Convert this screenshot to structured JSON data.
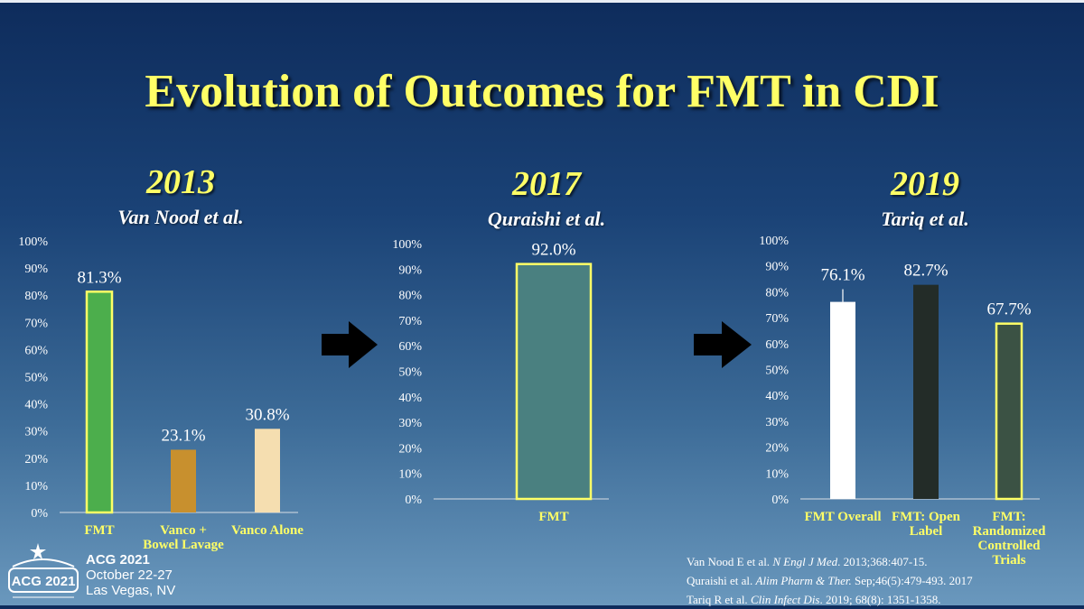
{
  "slide": {
    "title": "Evolution of Outcomes for FMT in CDI"
  },
  "panels": [
    {
      "year": "2013",
      "subtitle": "Van Nood et al."
    },
    {
      "year": "2017",
      "subtitle": "Quraishi et al."
    },
    {
      "year": "2019",
      "subtitle": "Tariq et al."
    }
  ],
  "colors": {
    "title": "#ffff66",
    "bar_outline": "#ffff66",
    "arrow": "#000000"
  },
  "icons": [
    "right-arrow-icon",
    "right-arrow-icon"
  ],
  "chart_data": [
    {
      "type": "bar",
      "ylim": [
        0,
        100
      ],
      "yticks": [
        "0%",
        "10%",
        "20%",
        "30%",
        "40%",
        "50%",
        "60%",
        "70%",
        "80%",
        "90%",
        "100%"
      ],
      "categories": [
        [
          "FMT"
        ],
        [
          "Vanco +",
          "Bowel Lavage"
        ],
        [
          "Vanco Alone"
        ]
      ],
      "values": [
        81.3,
        23.1,
        30.8
      ],
      "data_labels": [
        "81.3%",
        "23.1%",
        "30.8%"
      ],
      "bar_colors": [
        "#4cae4c",
        "#c8902e",
        "#f5deb0"
      ],
      "bar_outlined": [
        true,
        false,
        false
      ]
    },
    {
      "type": "bar",
      "ylim": [
        0,
        100
      ],
      "yticks": [
        "0%",
        "10%",
        "20%",
        "30%",
        "40%",
        "50%",
        "60%",
        "70%",
        "80%",
        "90%",
        "100%"
      ],
      "categories": [
        [
          "FMT"
        ]
      ],
      "values": [
        92.0
      ],
      "data_labels": [
        "92.0%"
      ],
      "bar_colors": [
        "#4a8080"
      ],
      "bar_outlined": [
        true
      ]
    },
    {
      "type": "bar",
      "ylim": [
        0,
        100
      ],
      "yticks": [
        "0%",
        "10%",
        "20%",
        "30%",
        "40%",
        "50%",
        "60%",
        "70%",
        "80%",
        "90%",
        "100%"
      ],
      "categories": [
        [
          "FMT Overall"
        ],
        [
          "FMT: Open",
          "Label"
        ],
        [
          "FMT:",
          "Randomized",
          "Controlled",
          "Trials"
        ]
      ],
      "values": [
        76.1,
        82.7,
        67.7
      ],
      "data_labels": [
        "76.1%",
        "82.7%",
        "67.7%"
      ],
      "bar_colors": [
        "#ffffff",
        "#232c28",
        "#3b5244"
      ],
      "bar_outlined": [
        false,
        false,
        true
      ],
      "error_bar_top": [
        81.0,
        null,
        null
      ]
    }
  ],
  "references": [
    {
      "authors": "Van Nood E et al.",
      "journal": "N Engl J Med",
      "rest": ". 2013;368:407-15."
    },
    {
      "authors": "Quraishi et al.",
      "journal": "Alim Pharm & Ther.",
      "rest": " Sep;46(5):479-493. 2017"
    },
    {
      "authors": "Tariq R et al.",
      "journal": "Clin Infect Dis",
      "rest": ". 2019; 68(8): 1351-1358."
    }
  ],
  "conference": {
    "logo_text": "ACG 2021",
    "name": "ACG 2021",
    "dates": "October 22-27",
    "location": "Las Vegas, NV"
  }
}
